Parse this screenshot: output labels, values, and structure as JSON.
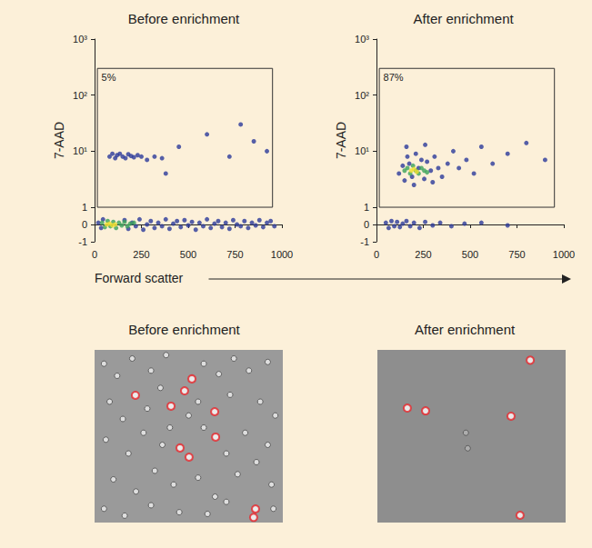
{
  "chart_data": [
    {
      "type": "scatter",
      "title": "Before enrichment",
      "xlabel": "Forward scatter",
      "ylabel": "7-AAD",
      "xlim": [
        0,
        1000
      ],
      "xticks": [
        0,
        250,
        500,
        750,
        1000
      ],
      "ylim": [
        -1,
        1000
      ],
      "yticks": [
        -1,
        0,
        1,
        {
          "value": 10,
          "label": "10¹"
        },
        {
          "value": 100,
          "label": "10²"
        },
        {
          "value": 1000,
          "label": "10³"
        }
      ],
      "log": "y",
      "grid": false,
      "gate": {
        "x": [
          15,
          950
        ],
        "y": [
          1,
          300
        ],
        "label": "5%"
      },
      "series": [
        {
          "color": "#2b3a9a",
          "values": [
            [
              20,
              0.1
            ],
            [
              35,
              -0.2
            ],
            [
              45,
              0.3
            ],
            [
              160,
              0.25
            ],
            [
              180,
              -0.25
            ],
            [
              200,
              0.1
            ],
            [
              220,
              -0.1
            ],
            [
              240,
              0.3
            ],
            [
              260,
              -0.3
            ],
            [
              280,
              0
            ],
            [
              300,
              0.2
            ],
            [
              320,
              -0.2
            ],
            [
              340,
              0.1
            ],
            [
              360,
              -0.1
            ],
            [
              380,
              0.3
            ],
            [
              400,
              -0.25
            ],
            [
              420,
              0.05
            ],
            [
              440,
              0.2
            ],
            [
              460,
              -0.15
            ],
            [
              480,
              0.25
            ],
            [
              500,
              -0.05
            ],
            [
              520,
              0.15
            ],
            [
              540,
              -0.3
            ],
            [
              560,
              0.1
            ],
            [
              580,
              -0.1
            ],
            [
              600,
              0.3
            ],
            [
              620,
              -0.2
            ],
            [
              640,
              0.05
            ],
            [
              660,
              0.2
            ],
            [
              680,
              -0.15
            ],
            [
              700,
              0.1
            ],
            [
              720,
              -0.25
            ],
            [
              740,
              0.25
            ],
            [
              760,
              0
            ],
            [
              780,
              -0.1
            ],
            [
              800,
              0.2
            ],
            [
              820,
              -0.2
            ],
            [
              840,
              0.1
            ],
            [
              860,
              -0.05
            ],
            [
              880,
              0.25
            ],
            [
              900,
              -0.15
            ],
            [
              920,
              0.1
            ],
            [
              940,
              0.2
            ],
            [
              960,
              -0.1
            ],
            [
              450,
              12
            ],
            [
              600,
              20
            ],
            [
              720,
              8
            ],
            [
              850,
              15
            ],
            [
              780,
              30
            ],
            [
              920,
              10
            ],
            [
              380,
              4
            ],
            [
              80,
              8
            ],
            [
              95,
              9
            ],
            [
              110,
              7.5
            ],
            [
              120,
              8.5
            ],
            [
              135,
              9
            ],
            [
              150,
              8
            ],
            [
              165,
              7.5
            ],
            [
              180,
              8.8
            ],
            [
              195,
              8.2
            ],
            [
              210,
              7.8
            ],
            [
              230,
              8.5
            ],
            [
              250,
              8
            ],
            [
              280,
              7
            ],
            [
              320,
              8
            ],
            [
              360,
              7.5
            ]
          ]
        },
        {
          "color": "#3aa35a",
          "values": [
            [
              40,
              0.1
            ],
            [
              55,
              -0.15
            ],
            [
              70,
              0.2
            ],
            [
              85,
              -0.1
            ],
            [
              100,
              0.15
            ],
            [
              115,
              -0.2
            ],
            [
              130,
              0.1
            ],
            [
              145,
              -0.05
            ],
            [
              160,
              0.15
            ],
            [
              175,
              -0.1
            ],
            [
              190,
              0.05
            ],
            [
              210,
              0.1
            ]
          ]
        },
        {
          "color": "#f0e030",
          "values": [
            [
              65,
              0
            ],
            [
              80,
              0.05
            ],
            [
              95,
              -0.05
            ],
            [
              110,
              0
            ]
          ]
        }
      ]
    },
    {
      "type": "scatter",
      "title": "After enrichment",
      "ylabel": "7-AAD",
      "xlim": [
        0,
        1000
      ],
      "xticks": [
        0,
        250,
        500,
        750,
        1000
      ],
      "ylim": [
        -1,
        1000
      ],
      "yticks": [
        -1,
        0,
        1,
        {
          "value": 10,
          "label": "10¹"
        },
        {
          "value": 100,
          "label": "10²"
        },
        {
          "value": 1000,
          "label": "10³"
        }
      ],
      "log": "y",
      "grid": false,
      "gate": {
        "x": [
          15,
          950
        ],
        "y": [
          1,
          300
        ],
        "label": "87%"
      },
      "series": [
        {
          "color": "#2b3a9a",
          "values": [
            [
              120,
              4
            ],
            [
              140,
              5.5
            ],
            [
              150,
              3
            ],
            [
              165,
              8
            ],
            [
              175,
              6
            ],
            [
              190,
              3.5
            ],
            [
              210,
              9
            ],
            [
              225,
              5
            ],
            [
              240,
              7
            ],
            [
              255,
              3.2
            ],
            [
              270,
              6.5
            ],
            [
              290,
              4.5
            ],
            [
              310,
              8
            ],
            [
              330,
              5
            ],
            [
              350,
              3.5
            ],
            [
              380,
              6
            ],
            [
              410,
              10
            ],
            [
              440,
              5
            ],
            [
              480,
              7
            ],
            [
              520,
              4
            ],
            [
              560,
              12
            ],
            [
              620,
              6
            ],
            [
              700,
              9
            ],
            [
              800,
              14
            ],
            [
              900,
              7
            ],
            [
              160,
              12
            ],
            [
              260,
              13
            ],
            [
              200,
              2.5
            ],
            [
              300,
              2.8
            ],
            [
              50,
              0.1
            ],
            [
              65,
              -0.2
            ],
            [
              80,
              0.2
            ],
            [
              95,
              -0.1
            ],
            [
              110,
              0.15
            ],
            [
              125,
              -0.15
            ],
            [
              140,
              0.05
            ],
            [
              160,
              0.2
            ],
            [
              180,
              -0.1
            ],
            [
              200,
              0.1
            ],
            [
              230,
              -0.2
            ],
            [
              260,
              0.15
            ],
            [
              300,
              -0.05
            ],
            [
              340,
              0.1
            ],
            [
              400,
              -0.1
            ],
            [
              470,
              0.05
            ],
            [
              560,
              0.1
            ],
            [
              700,
              -0.05
            ]
          ]
        },
        {
          "color": "#3aa35a",
          "values": [
            [
              150,
              4.5
            ],
            [
              165,
              5
            ],
            [
              180,
              4
            ],
            [
              195,
              5.5
            ],
            [
              210,
              4.5
            ],
            [
              225,
              4
            ],
            [
              240,
              5
            ],
            [
              255,
              4.5
            ],
            [
              270,
              4.2
            ]
          ]
        },
        {
          "color": "#f0e030",
          "values": [
            [
              185,
              4.5
            ],
            [
              200,
              4.8
            ],
            [
              215,
              4.3
            ]
          ]
        }
      ]
    },
    {
      "type": "scatter",
      "title": "Before enrichment",
      "tick_labels": false,
      "xlim": [
        0,
        100
      ],
      "ylim": [
        0,
        100
      ],
      "series": [
        {
          "color": "#e6e6e6",
          "marker": "circle",
          "values": [
            [
              5,
              92
            ],
            [
              12,
              85
            ],
            [
              20,
              95
            ],
            [
              30,
              88
            ],
            [
              38,
              97
            ],
            [
              58,
              92
            ],
            [
              66,
              86
            ],
            [
              74,
              95
            ],
            [
              82,
              88
            ],
            [
              92,
              93
            ],
            [
              8,
              70
            ],
            [
              15,
              60
            ],
            [
              28,
              66
            ],
            [
              35,
              78
            ],
            [
              55,
              70
            ],
            [
              72,
              74
            ],
            [
              88,
              70
            ],
            [
              96,
              62
            ],
            [
              6,
              48
            ],
            [
              18,
              40
            ],
            [
              26,
              52
            ],
            [
              36,
              45
            ],
            [
              58,
              55
            ],
            [
              70,
              40
            ],
            [
              80,
              52
            ],
            [
              92,
              45
            ],
            [
              10,
              25
            ],
            [
              22,
              18
            ],
            [
              32,
              30
            ],
            [
              42,
              22
            ],
            [
              55,
              26
            ],
            [
              64,
              15
            ],
            [
              76,
              28
            ],
            [
              94,
              22
            ],
            [
              5,
              8
            ],
            [
              16,
              4
            ],
            [
              30,
              10
            ],
            [
              45,
              6
            ],
            [
              60,
              5
            ],
            [
              70,
              12
            ],
            [
              95,
              8
            ],
            [
              40,
              55
            ],
            [
              50,
              62
            ],
            [
              86,
              35
            ]
          ]
        },
        {
          "color": "#e8262b",
          "marker": "emptyCircle",
          "values": [
            [
              51.7,
              83.2
            ],
            [
              21.7,
              73.7
            ],
            [
              47.8,
              76.3
            ],
            [
              40.6,
              67.4
            ],
            [
              63.8,
              64.2
            ],
            [
              45.4,
              43.2
            ],
            [
              50.2,
              37.9
            ],
            [
              85.5,
              7.9
            ],
            [
              84.5,
              3
            ],
            [
              64.3,
              49.5
            ]
          ]
        }
      ]
    },
    {
      "type": "scatter",
      "title": "After enrichment",
      "tick_labels": false,
      "xlim": [
        0,
        100
      ],
      "ylim": [
        0,
        100
      ],
      "series": [
        {
          "color": "#b0b0b0",
          "marker": "circle",
          "values": [
            [
              47,
              52
            ],
            [
              48,
              43
            ]
          ]
        },
        {
          "color": "#e8262b",
          "marker": "emptyCircle",
          "values": [
            [
              81.2,
              94
            ],
            [
              15.9,
              66.3
            ],
            [
              25.6,
              64.7
            ],
            [
              71,
              61.6
            ],
            [
              75.8,
              4.2
            ]
          ]
        }
      ]
    }
  ]
}
